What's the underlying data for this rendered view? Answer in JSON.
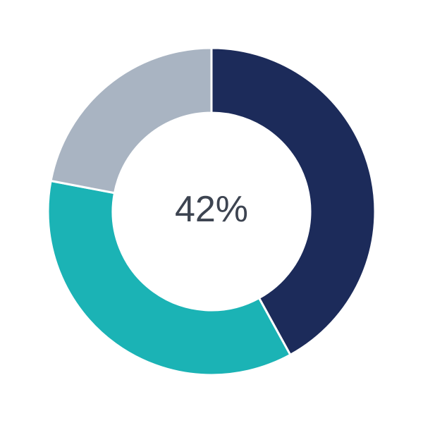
{
  "chart_data": {
    "type": "pie",
    "variant": "donut",
    "center_label": "42%",
    "slices": [
      {
        "value": 42,
        "color": "#1c2b5a"
      },
      {
        "value": 36,
        "color": "#1bb3b5"
      },
      {
        "value": 22,
        "color": "#a9b4c2"
      }
    ],
    "start": "top",
    "direction": "clockwise"
  }
}
